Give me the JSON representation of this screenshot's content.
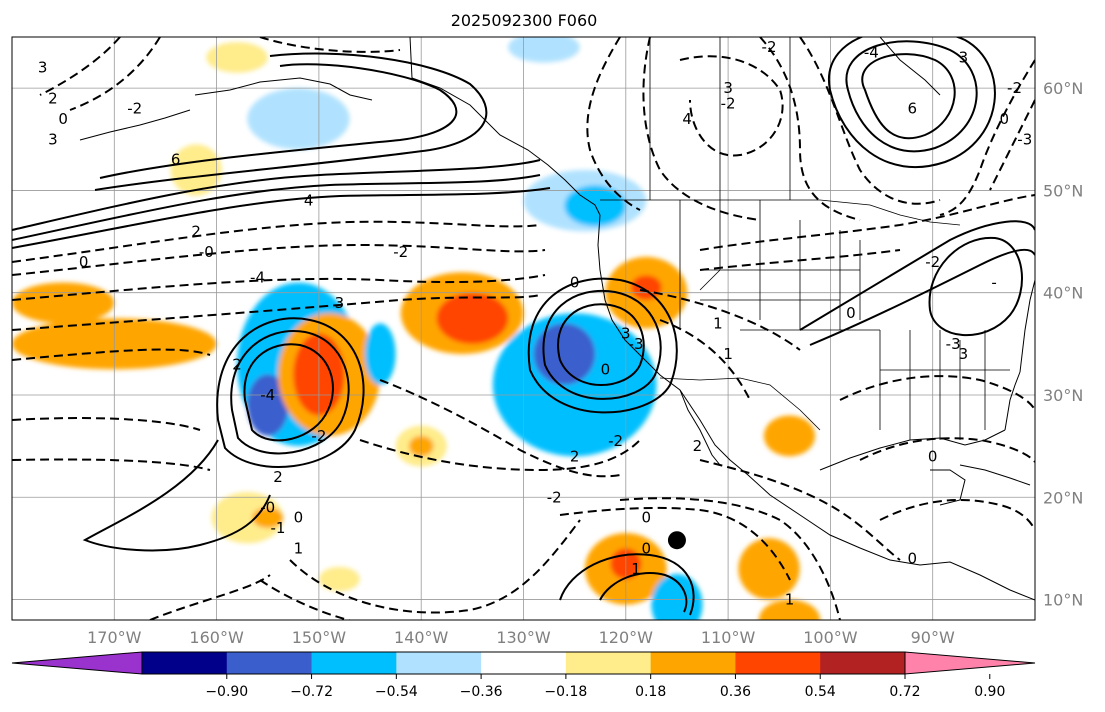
{
  "title": "2025092300 F060",
  "map": {
    "lon_range": [
      -180,
      -80
    ],
    "lat_range": [
      8,
      65
    ],
    "lon_ticks": [
      {
        "lon": -170,
        "label": "170°W"
      },
      {
        "lon": -160,
        "label": "160°W"
      },
      {
        "lon": -150,
        "label": "150°W"
      },
      {
        "lon": -140,
        "label": "140°W"
      },
      {
        "lon": -130,
        "label": "130°W"
      },
      {
        "lon": -120,
        "label": "120°W"
      },
      {
        "lon": -110,
        "label": "110°W"
      },
      {
        "lon": -100,
        "label": "100°W"
      },
      {
        "lon": -90,
        "label": "90°W"
      }
    ],
    "lat_ticks": [
      {
        "lat": 60,
        "label": "60°N"
      },
      {
        "lat": 50,
        "label": "50°N"
      },
      {
        "lat": 40,
        "label": "40°N"
      },
      {
        "lat": 30,
        "label": "30°N"
      },
      {
        "lat": 20,
        "label": "20°N"
      },
      {
        "lat": 10,
        "label": "10°N"
      }
    ]
  },
  "colorbar": {
    "ticks": [
      "−0.90",
      "−0.72",
      "−0.54",
      "−0.36",
      "−0.18",
      "0.18",
      "0.36",
      "0.54",
      "0.72",
      "0.90"
    ],
    "colors": [
      "#9a32cd",
      "#00008b",
      "#3a5fcd",
      "#00bfff",
      "#b0e2ff",
      "#ffffff",
      "#ffec8b",
      "#ffa500",
      "#ff4500",
      "#b22222",
      "#ff82ab"
    ]
  },
  "fill_colors": {
    "neg_strong": "#3a5fcd",
    "neg_mid": "#00bfff",
    "neg_weak": "#b0e2ff",
    "pos_weak": "#ffec8b",
    "pos_mid": "#ffa500",
    "pos_strong": "#ff4500"
  },
  "anomaly_blobs": [
    {
      "lon": -152,
      "lat": 33,
      "rx": 6,
      "ry": 8,
      "level": "neg_mid"
    },
    {
      "lon": -155,
      "lat": 29,
      "rx": 2,
      "ry": 3,
      "level": "neg_strong"
    },
    {
      "lon": -149,
      "lat": 32,
      "rx": 5,
      "ry": 6,
      "level": "pos_mid"
    },
    {
      "lon": -150,
      "lat": 32,
      "rx": 2.5,
      "ry": 4,
      "level": "pos_strong"
    },
    {
      "lon": -136,
      "lat": 38,
      "rx": 6,
      "ry": 4,
      "level": "pos_mid"
    },
    {
      "lon": -135,
      "lat": 37.5,
      "rx": 3.5,
      "ry": 2.5,
      "level": "pos_strong"
    },
    {
      "lon": -125,
      "lat": 31,
      "rx": 8,
      "ry": 7,
      "level": "neg_mid"
    },
    {
      "lon": -126,
      "lat": 34,
      "rx": 3,
      "ry": 3,
      "level": "neg_strong"
    },
    {
      "lon": -118,
      "lat": 40,
      "rx": 4,
      "ry": 3.5,
      "level": "pos_mid"
    },
    {
      "lon": -118,
      "lat": 40.5,
      "rx": 1.5,
      "ry": 1.2,
      "level": "pos_strong"
    },
    {
      "lon": -124,
      "lat": 49,
      "rx": 6,
      "ry": 3,
      "level": "neg_weak"
    },
    {
      "lon": -123,
      "lat": 48.5,
      "rx": 3,
      "ry": 2,
      "level": "neg_mid"
    },
    {
      "lon": -144,
      "lat": 34,
      "rx": 1.5,
      "ry": 3,
      "level": "neg_mid"
    },
    {
      "lon": -140,
      "lat": 25,
      "rx": 2.5,
      "ry": 2,
      "level": "pos_weak"
    },
    {
      "lon": -140,
      "lat": 25,
      "rx": 1.2,
      "ry": 1,
      "level": "pos_mid"
    },
    {
      "lon": -120,
      "lat": 13,
      "rx": 4,
      "ry": 3.5,
      "level": "pos_mid"
    },
    {
      "lon": -120,
      "lat": 13.5,
      "rx": 1.5,
      "ry": 1.5,
      "level": "pos_strong"
    },
    {
      "lon": -115,
      "lat": 9.5,
      "rx": 2.5,
      "ry": 3,
      "level": "neg_mid"
    },
    {
      "lon": -106,
      "lat": 13,
      "rx": 3,
      "ry": 3,
      "level": "pos_mid"
    },
    {
      "lon": -104,
      "lat": 26,
      "rx": 2.5,
      "ry": 2,
      "level": "pos_mid"
    },
    {
      "lon": -170,
      "lat": 35,
      "rx": 10,
      "ry": 2.5,
      "level": "pos_mid"
    },
    {
      "lon": -175,
      "lat": 39,
      "rx": 5,
      "ry": 2,
      "level": "pos_mid"
    },
    {
      "lon": -157,
      "lat": 18,
      "rx": 3.5,
      "ry": 2.5,
      "level": "pos_weak"
    },
    {
      "lon": -155,
      "lat": 18,
      "rx": 1.5,
      "ry": 1,
      "level": "pos_mid"
    },
    {
      "lon": -162,
      "lat": 52,
      "rx": 2.5,
      "ry": 2.5,
      "level": "pos_weak"
    },
    {
      "lon": -152,
      "lat": 57,
      "rx": 5,
      "ry": 3,
      "level": "neg_weak"
    },
    {
      "lon": -158,
      "lat": 63,
      "rx": 3,
      "ry": 1.5,
      "level": "pos_weak"
    },
    {
      "lon": -128,
      "lat": 64,
      "rx": 3.5,
      "ry": 1.5,
      "level": "neg_weak"
    },
    {
      "lon": -104,
      "lat": 8,
      "rx": 3,
      "ry": 2,
      "level": "pos_mid"
    },
    {
      "lon": -148,
      "lat": 12,
      "rx": 2,
      "ry": 1.2,
      "level": "pos_weak"
    }
  ],
  "contour_labels": [
    {
      "lon": -177,
      "lat": 62,
      "text": "3"
    },
    {
      "lon": -176,
      "lat": 59,
      "text": "2"
    },
    {
      "lon": -175,
      "lat": 57,
      "text": "0"
    },
    {
      "lon": -176,
      "lat": 55,
      "text": "3"
    },
    {
      "lon": -168,
      "lat": 58,
      "text": "-2"
    },
    {
      "lon": -164,
      "lat": 53,
      "text": "6"
    },
    {
      "lon": -151,
      "lat": 49,
      "text": "4"
    },
    {
      "lon": -162,
      "lat": 46,
      "text": "2"
    },
    {
      "lon": -161,
      "lat": 44,
      "text": "-0"
    },
    {
      "lon": -156,
      "lat": 41.5,
      "text": "-4"
    },
    {
      "lon": -173,
      "lat": 43,
      "text": "0"
    },
    {
      "lon": -142,
      "lat": 44,
      "text": "-2"
    },
    {
      "lon": -148,
      "lat": 39,
      "text": "3"
    },
    {
      "lon": -125,
      "lat": 41,
      "text": "0"
    },
    {
      "lon": -120,
      "lat": 36,
      "text": "3"
    },
    {
      "lon": -122,
      "lat": 32.5,
      "text": "0"
    },
    {
      "lon": -119,
      "lat": 35,
      "text": "-3"
    },
    {
      "lon": -121,
      "lat": 25.5,
      "text": "-2"
    },
    {
      "lon": -125,
      "lat": 24,
      "text": "2"
    },
    {
      "lon": -127,
      "lat": 20,
      "text": "-2"
    },
    {
      "lon": -150,
      "lat": 26,
      "text": "-2"
    },
    {
      "lon": -154,
      "lat": 22,
      "text": "2"
    },
    {
      "lon": -155,
      "lat": 19,
      "text": "-0"
    },
    {
      "lon": -152,
      "lat": 18,
      "text": "0"
    },
    {
      "lon": -154,
      "lat": 17,
      "text": "-1"
    },
    {
      "lon": -152,
      "lat": 15,
      "text": "1"
    },
    {
      "lon": -155,
      "lat": 30,
      "text": "-4"
    },
    {
      "lon": -158,
      "lat": 33,
      "text": "2"
    },
    {
      "lon": -118,
      "lat": 18,
      "text": "0"
    },
    {
      "lon": -118,
      "lat": 15,
      "text": "0"
    },
    {
      "lon": -119,
      "lat": 13,
      "text": "1"
    },
    {
      "lon": -113,
      "lat": 25,
      "text": "2"
    },
    {
      "lon": -110,
      "lat": 34,
      "text": "1"
    },
    {
      "lon": -111,
      "lat": 37,
      "text": "1"
    },
    {
      "lon": -114,
      "lat": 57,
      "text": "4"
    },
    {
      "lon": -110,
      "lat": 60,
      "text": "3"
    },
    {
      "lon": -110,
      "lat": 58.5,
      "text": "-2"
    },
    {
      "lon": -106,
      "lat": 64,
      "text": "-2"
    },
    {
      "lon": -96,
      "lat": 63.5,
      "text": "-4"
    },
    {
      "lon": -92,
      "lat": 58,
      "text": "6"
    },
    {
      "lon": -87,
      "lat": 63,
      "text": "3"
    },
    {
      "lon": -83,
      "lat": 57,
      "text": "0"
    },
    {
      "lon": -82,
      "lat": 60,
      "text": "-2"
    },
    {
      "lon": -81,
      "lat": 55,
      "text": "-3"
    },
    {
      "lon": -98,
      "lat": 38,
      "text": "0"
    },
    {
      "lon": -90,
      "lat": 43,
      "text": "-2"
    },
    {
      "lon": -87,
      "lat": 34,
      "text": "3"
    },
    {
      "lon": -88,
      "lat": 35,
      "text": "-3"
    },
    {
      "lon": -84,
      "lat": 41,
      "text": "-"
    },
    {
      "lon": -104,
      "lat": 10,
      "text": "1"
    },
    {
      "lon": -90,
      "lat": 24,
      "text": "0"
    },
    {
      "lon": -92,
      "lat": 14,
      "text": "0"
    }
  ],
  "marker": {
    "lon": -115,
    "lat": 15.8
  }
}
